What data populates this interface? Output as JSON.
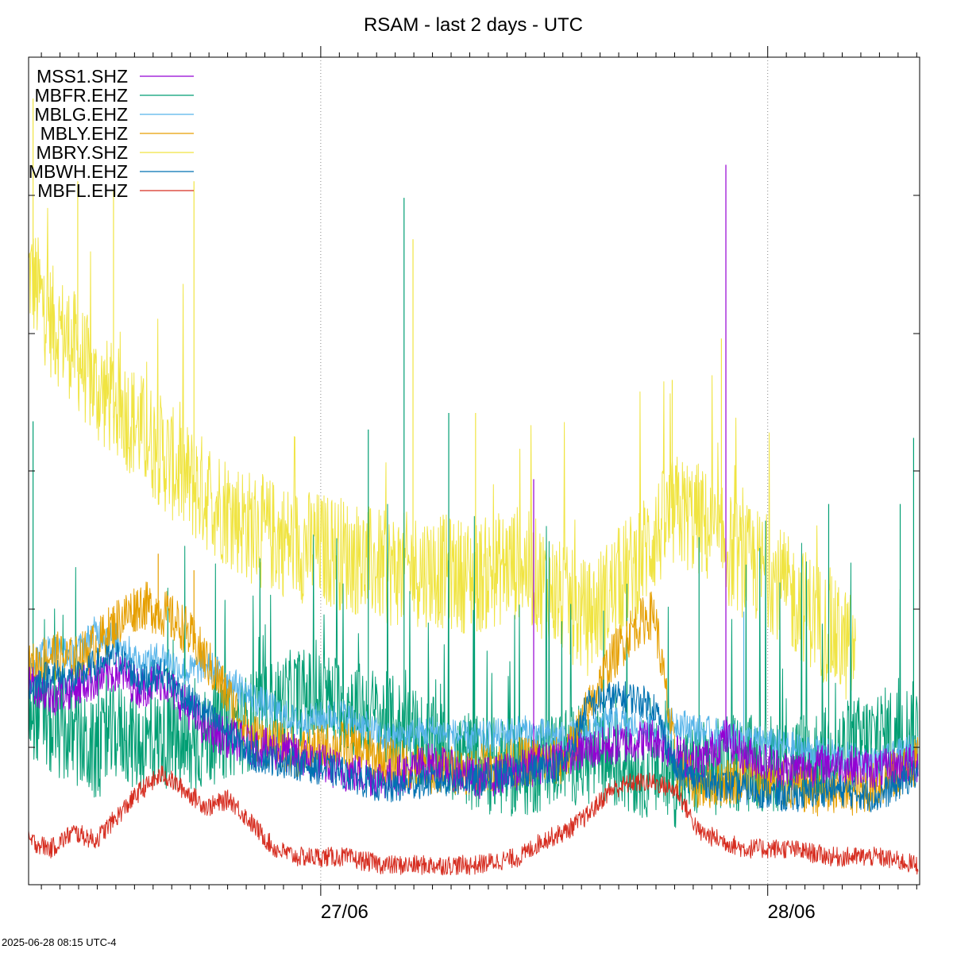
{
  "chart_data": {
    "type": "line",
    "title": "RSAM - last 2 days - UTC",
    "footer": "2025-06-28 08:15 UTC-4",
    "x_range_days": [
      0,
      1.9935
    ],
    "x_ticks": [
      {
        "x": 0.6536,
        "label": "27/06"
      },
      {
        "x": 1.6536,
        "label": "28/06"
      }
    ],
    "y_range": [
      0,
      1
    ],
    "grid": "vertical dotted at day boundaries",
    "legend_position": "top-left",
    "series": [
      {
        "name": "MSS1.SHZ",
        "color": "#9400d3",
        "x": [
          0.0,
          0.05,
          0.1,
          0.15,
          0.2,
          0.25,
          0.3,
          0.35,
          0.4,
          0.5,
          0.6,
          0.7,
          0.8,
          0.9,
          1.0,
          1.1,
          1.2,
          1.3,
          1.4,
          1.45,
          1.5,
          1.56,
          1.6,
          1.7,
          1.8,
          1.9,
          1.99
        ],
        "values": [
          0.24,
          0.22,
          0.23,
          0.24,
          0.25,
          0.23,
          0.24,
          0.21,
          0.18,
          0.16,
          0.15,
          0.13,
          0.12,
          0.14,
          0.12,
          0.13,
          0.15,
          0.16,
          0.17,
          0.15,
          0.14,
          0.17,
          0.15,
          0.13,
          0.14,
          0.13,
          0.14
        ],
        "spikes": [
          {
            "x": 1.56,
            "value": 0.87
          },
          {
            "x": 1.13,
            "value": 0.49
          }
        ]
      },
      {
        "name": "MBFR.EHZ",
        "color": "#009e73",
        "x": [
          0.0,
          0.05,
          0.1,
          0.15,
          0.2,
          0.25,
          0.3,
          0.35,
          0.4,
          0.5,
          0.6,
          0.7,
          0.8,
          0.9,
          1.0,
          1.1,
          1.2,
          1.3,
          1.4,
          1.45,
          1.5,
          1.6,
          1.7,
          1.8,
          1.9,
          1.99
        ],
        "values": [
          0.2,
          0.17,
          0.16,
          0.14,
          0.17,
          0.15,
          0.16,
          0.14,
          0.16,
          0.18,
          0.21,
          0.2,
          0.18,
          0.15,
          0.13,
          0.12,
          0.14,
          0.13,
          0.12,
          0.11,
          0.12,
          0.13,
          0.13,
          0.14,
          0.16,
          0.17
        ],
        "spikes": [
          {
            "x": 0.84,
            "value": 0.83
          },
          {
            "x": 0.01,
            "value": 0.56
          },
          {
            "x": 0.76,
            "value": 0.55
          },
          {
            "x": 0.94,
            "value": 0.57
          },
          {
            "x": 1.98,
            "value": 0.54
          },
          {
            "x": 1.95,
            "value": 0.46
          },
          {
            "x": 1.79,
            "value": 0.46
          },
          {
            "x": 1.5,
            "value": 0.42
          }
        ]
      },
      {
        "name": "MBLG.EHZ",
        "color": "#56b4e9",
        "x": [
          0.0,
          0.05,
          0.1,
          0.15,
          0.2,
          0.25,
          0.3,
          0.35,
          0.4,
          0.5,
          0.6,
          0.7,
          0.8,
          0.9,
          1.0,
          1.1,
          1.2,
          1.3,
          1.4,
          1.45,
          1.5,
          1.6,
          1.7,
          1.8,
          1.9,
          1.99
        ],
        "values": [
          0.26,
          0.28,
          0.27,
          0.3,
          0.29,
          0.26,
          0.27,
          0.25,
          0.26,
          0.22,
          0.19,
          0.2,
          0.17,
          0.18,
          0.17,
          0.18,
          0.17,
          0.19,
          0.18,
          0.19,
          0.18,
          0.17,
          0.16,
          0.15,
          0.14,
          0.16
        ],
        "spikes": [
          {
            "x": 1.6,
            "value": 0.33
          }
        ]
      },
      {
        "name": "MBLY.EHZ",
        "color": "#e69f00",
        "x": [
          0.0,
          0.05,
          0.1,
          0.15,
          0.2,
          0.25,
          0.3,
          0.35,
          0.4,
          0.5,
          0.6,
          0.7,
          0.8,
          0.9,
          1.0,
          1.1,
          1.2,
          1.25,
          1.3,
          1.35,
          1.4,
          1.45,
          1.5,
          1.6,
          1.7,
          1.8,
          1.9,
          1.99
        ],
        "values": [
          0.25,
          0.27,
          0.26,
          0.28,
          0.31,
          0.33,
          0.32,
          0.3,
          0.26,
          0.17,
          0.15,
          0.16,
          0.14,
          0.13,
          0.13,
          0.14,
          0.14,
          0.2,
          0.26,
          0.3,
          0.32,
          0.13,
          0.11,
          0.12,
          0.11,
          0.1,
          0.11,
          0.14
        ],
        "spikes": [
          {
            "x": 0.29,
            "value": 0.4
          },
          {
            "x": 0.37,
            "value": 0.38
          }
        ]
      },
      {
        "name": "MBRY.SHZ",
        "color": "#f0e442",
        "x": [
          0.0,
          0.05,
          0.1,
          0.15,
          0.2,
          0.25,
          0.3,
          0.35,
          0.4,
          0.5,
          0.6,
          0.7,
          0.8,
          0.9,
          1.0,
          1.1,
          1.2,
          1.25,
          1.3,
          1.35,
          1.4,
          1.45,
          1.5,
          1.55,
          1.6,
          1.65,
          1.7,
          1.75,
          1.8,
          1.85
        ],
        "values": [
          0.72,
          0.66,
          0.63,
          0.58,
          0.56,
          0.53,
          0.5,
          0.47,
          0.45,
          0.41,
          0.39,
          0.38,
          0.36,
          0.36,
          0.35,
          0.37,
          0.32,
          0.3,
          0.33,
          0.36,
          0.4,
          0.43,
          0.42,
          0.39,
          0.37,
          0.36,
          0.33,
          0.31,
          0.28,
          0.26
        ],
        "spikes": [
          {
            "x": 0.01,
            "value": 0.95
          },
          {
            "x": 0.11,
            "value": 0.85
          },
          {
            "x": 0.19,
            "value": 0.84
          },
          {
            "x": 0.37,
            "value": 0.85
          },
          {
            "x": 0.86,
            "value": 0.78
          },
          {
            "x": 1.55,
            "value": 0.66
          },
          {
            "x": 1.44,
            "value": 0.61
          },
          {
            "x": 1.0,
            "value": 0.57
          }
        ]
      },
      {
        "name": "MBWH.EHZ",
        "color": "#0072b2",
        "x": [
          0.0,
          0.05,
          0.1,
          0.15,
          0.2,
          0.25,
          0.3,
          0.35,
          0.4,
          0.5,
          0.6,
          0.7,
          0.8,
          0.9,
          1.0,
          1.1,
          1.2,
          1.25,
          1.3,
          1.35,
          1.4,
          1.45,
          1.5,
          1.6,
          1.7,
          1.8,
          1.9,
          1.99
        ],
        "values": [
          0.23,
          0.25,
          0.24,
          0.26,
          0.27,
          0.24,
          0.25,
          0.22,
          0.2,
          0.15,
          0.14,
          0.13,
          0.11,
          0.12,
          0.12,
          0.13,
          0.14,
          0.21,
          0.22,
          0.22,
          0.21,
          0.13,
          0.12,
          0.11,
          0.1,
          0.11,
          0.1,
          0.13
        ],
        "spikes": []
      },
      {
        "name": "MBFL.EHZ",
        "color": "#d62d20",
        "x": [
          0.0,
          0.05,
          0.1,
          0.15,
          0.2,
          0.25,
          0.3,
          0.35,
          0.4,
          0.45,
          0.5,
          0.55,
          0.6,
          0.7,
          0.8,
          0.9,
          1.0,
          1.1,
          1.15,
          1.2,
          1.25,
          1.3,
          1.35,
          1.4,
          1.45,
          1.5,
          1.6,
          1.7,
          1.8,
          1.9,
          1.99
        ],
        "values": [
          0.05,
          0.04,
          0.06,
          0.05,
          0.08,
          0.11,
          0.13,
          0.11,
          0.09,
          0.1,
          0.07,
          0.04,
          0.03,
          0.03,
          0.02,
          0.02,
          0.02,
          0.03,
          0.05,
          0.06,
          0.08,
          0.11,
          0.12,
          0.12,
          0.11,
          0.06,
          0.04,
          0.04,
          0.03,
          0.03,
          0.02
        ],
        "spikes": []
      }
    ]
  }
}
